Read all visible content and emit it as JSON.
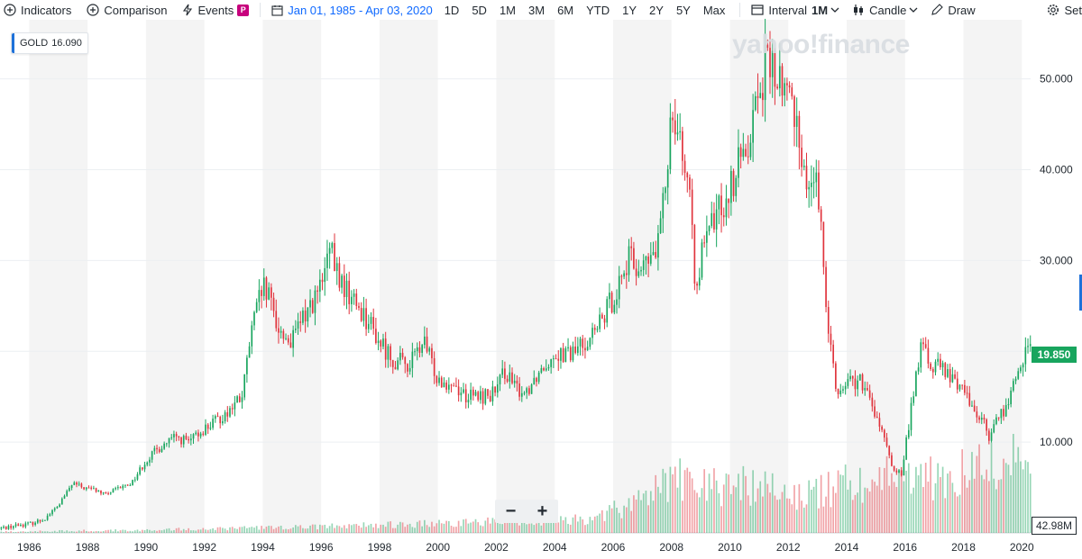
{
  "toolbar": {
    "indicators": "Indicators",
    "comparison": "Comparison",
    "events": "Events",
    "events_badge": "P",
    "date_range": "Jan 01, 1985 - Apr 03, 2020",
    "ranges": [
      "1D",
      "5D",
      "1M",
      "3M",
      "6M",
      "YTD",
      "1Y",
      "2Y",
      "5Y",
      "Max"
    ],
    "interval_label": "Interval",
    "interval_value": "1M",
    "chart_type": "Candle",
    "draw": "Draw",
    "settings": "Set"
  },
  "legend": {
    "symbol": "GOLD",
    "value": "16.090",
    "color": "#1e71d9"
  },
  "watermark": "yahoo!finance",
  "zoom": {
    "minus": "−",
    "plus": "+"
  },
  "price_tag": {
    "value": "19.850",
    "color": "#18a55e"
  },
  "volume_tag": {
    "value": "42.98M"
  },
  "colors": {
    "up": "#18a55e",
    "down": "#e0333c",
    "band": "#f4f4f4",
    "grid": "#eceff2"
  },
  "chart_data": {
    "type": "candlestick",
    "symbol": "GOLD",
    "interval": "1M",
    "x_tick_labels": [
      "1986",
      "1988",
      "1990",
      "1992",
      "1994",
      "1996",
      "1998",
      "2000",
      "2002",
      "2004",
      "2006",
      "2008",
      "2010",
      "2012",
      "2014",
      "2016",
      "2018",
      "2020"
    ],
    "y_tick_labels": [
      "10.000",
      "20.000",
      "30.000",
      "40.000",
      "50.000"
    ],
    "y_ticks": [
      10,
      20,
      30,
      40,
      50
    ],
    "ylim": [
      0,
      56.5
    ],
    "xlim": [
      1985.0,
      2020.3
    ],
    "grid": true,
    "last_close": 19.85,
    "last_volume": "42.98M",
    "close_series": {
      "x": [
        1985.0,
        1985.5,
        1986.0,
        1986.5,
        1987.0,
        1987.5,
        1987.8,
        1988.2,
        1988.6,
        1989.0,
        1989.5,
        1990.0,
        1990.5,
        1991.0,
        1991.5,
        1992.0,
        1992.5,
        1993.0,
        1993.3,
        1993.6,
        1994.0,
        1994.3,
        1994.6,
        1995.0,
        1995.5,
        1996.0,
        1996.3,
        1996.6,
        1997.0,
        1997.5,
        1998.0,
        1998.5,
        1999.0,
        1999.5,
        2000.0,
        2000.5,
        2001.0,
        2001.5,
        2002.0,
        2002.3,
        2002.6,
        2003.0,
        2003.5,
        2004.0,
        2004.5,
        2005.0,
        2005.5,
        2006.0,
        2006.5,
        2007.0,
        2007.5,
        2007.8,
        2008.0,
        2008.3,
        2008.6,
        2008.8,
        2009.0,
        2009.5,
        2010.0,
        2010.5,
        2011.0,
        2011.3,
        2011.6,
        2012.0,
        2012.3,
        2012.6,
        2012.9,
        2013.2,
        2013.4,
        2013.7,
        2014.0,
        2014.5,
        2015.0,
        2015.3,
        2015.6,
        2015.9,
        2016.0,
        2016.3,
        2016.6,
        2016.9,
        2017.2,
        2017.5,
        2017.9,
        2018.3,
        2018.7,
        2018.9,
        2019.2,
        2019.5,
        2019.8,
        2020.0,
        2020.25
      ],
      "values": [
        0.5,
        0.8,
        1.0,
        1.5,
        3.0,
        5.5,
        5.0,
        4.8,
        4.2,
        4.8,
        5.5,
        8.0,
        9.5,
        10.5,
        10.0,
        11.5,
        12.5,
        14.0,
        15.0,
        22.0,
        27.0,
        25.0,
        22.0,
        21.0,
        24.5,
        27.0,
        31.0,
        28.0,
        26.0,
        24.0,
        21.0,
        19.0,
        18.5,
        21.0,
        17.0,
        16.5,
        15.0,
        15.0,
        15.5,
        18.0,
        16.0,
        15.5,
        18.0,
        20.0,
        19.5,
        21.0,
        22.5,
        26.0,
        30.0,
        29.0,
        31.0,
        38.0,
        48.0,
        44.0,
        37.0,
        28.0,
        30.0,
        35.0,
        38.0,
        42.0,
        49.0,
        52.0,
        50.0,
        48.0,
        46.0,
        38.0,
        40.0,
        30.0,
        22.0,
        15.0,
        17.0,
        16.5,
        13.0,
        10.0,
        7.0,
        6.5,
        9.0,
        16.0,
        21.0,
        18.0,
        18.5,
        17.0,
        16.5,
        14.0,
        12.0,
        10.5,
        13.0,
        14.0,
        17.0,
        19.5,
        19.85
      ]
    },
    "volume_series": {
      "x": [
        1985,
        1990,
        1995,
        2000,
        2005,
        2006.5,
        2008,
        2009,
        2011,
        2012.5,
        2013.5,
        2015.5,
        2017,
        2019,
        2020.2
      ],
      "values": [
        0.3,
        0.8,
        1.5,
        2.5,
        3.5,
        7,
        15,
        12,
        13,
        10,
        12,
        16,
        14,
        18,
        22
      ]
    }
  }
}
